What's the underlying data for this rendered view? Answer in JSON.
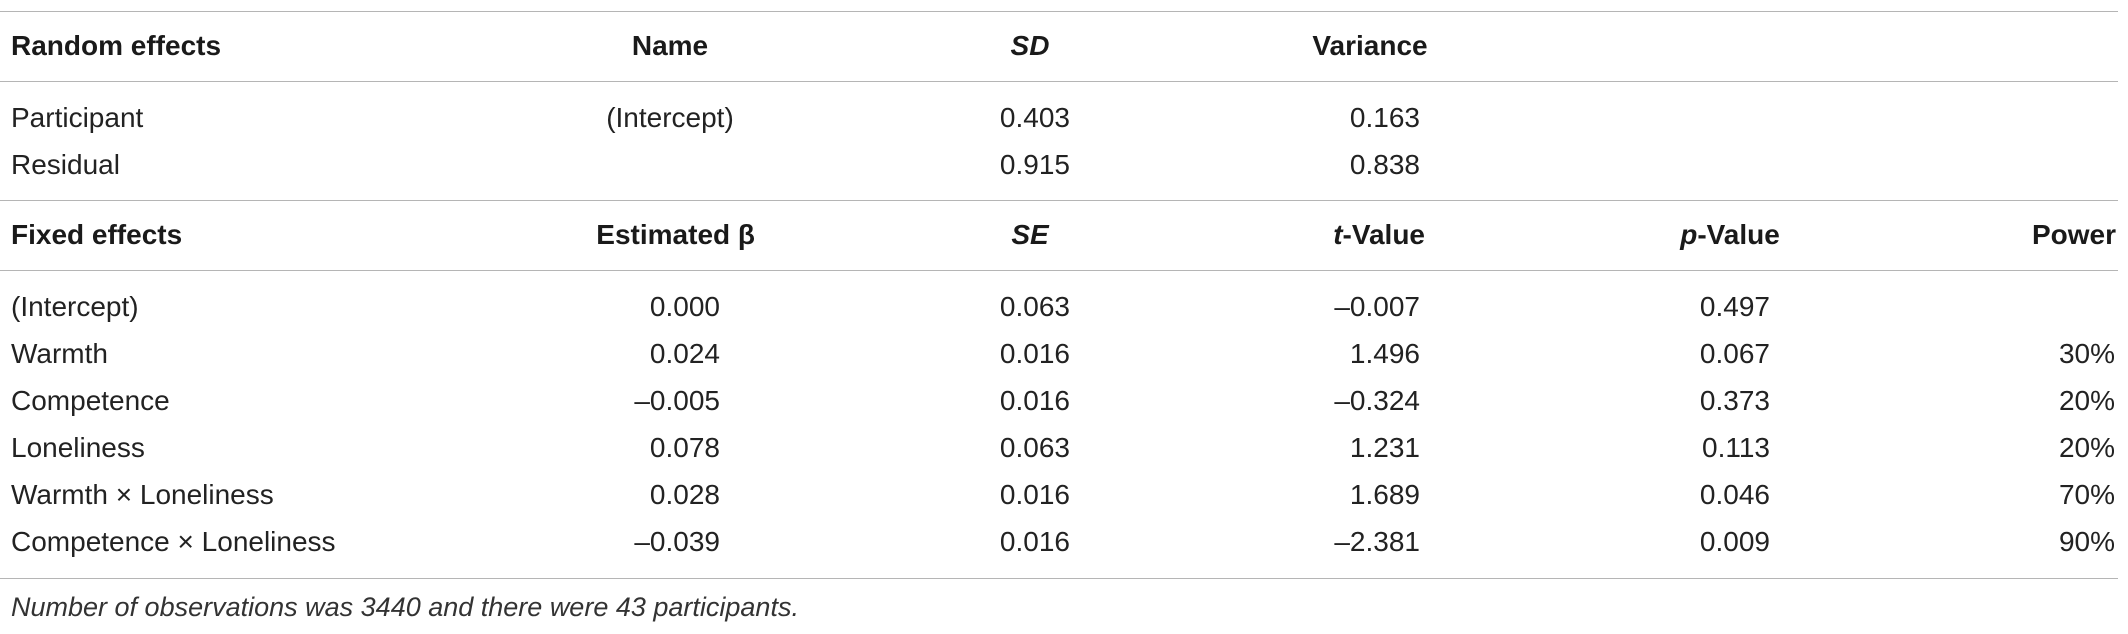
{
  "random_effects": {
    "header": {
      "col1": "Random effects",
      "col2": "Name",
      "col3": "SD",
      "col4": "Variance"
    },
    "rows": [
      {
        "group": "Participant",
        "name": "(Intercept)",
        "sd": "0.403",
        "variance": "0.163"
      },
      {
        "group": "Residual",
        "name": "",
        "sd": "0.915",
        "variance": "0.838"
      }
    ]
  },
  "fixed_effects": {
    "header": {
      "col1": "Fixed effects",
      "col2": "Estimated β",
      "col3": "SE",
      "col4_prefix": "t",
      "col4_suffix": "-Value",
      "col5_prefix": "p",
      "col5_suffix": "-Value",
      "col6": "Power"
    },
    "rows": [
      {
        "term": "(Intercept)",
        "beta": "0.000",
        "se": "0.063",
        "t": "–0.007",
        "p": "0.497",
        "power": ""
      },
      {
        "term": "Warmth",
        "beta": "0.024",
        "se": "0.016",
        "t": "1.496",
        "p": "0.067",
        "power": "30%"
      },
      {
        "term": "Competence",
        "beta": "–0.005",
        "se": "0.016",
        "t": "–0.324",
        "p": "0.373",
        "power": "20%"
      },
      {
        "term": "Loneliness",
        "beta": "0.078",
        "se": "0.063",
        "t": "1.231",
        "p": "0.113",
        "power": "20%"
      },
      {
        "term": "Warmth × Loneliness",
        "beta": "0.028",
        "se": "0.016",
        "t": "1.689",
        "p": "0.046",
        "power": "70%"
      },
      {
        "term": "Competence × Loneliness",
        "beta": "–0.039",
        "se": "0.016",
        "t": "–2.381",
        "p": "0.009",
        "power": "90%"
      }
    ]
  },
  "footnote": "Number of observations was 3440 and there were 43 participants."
}
